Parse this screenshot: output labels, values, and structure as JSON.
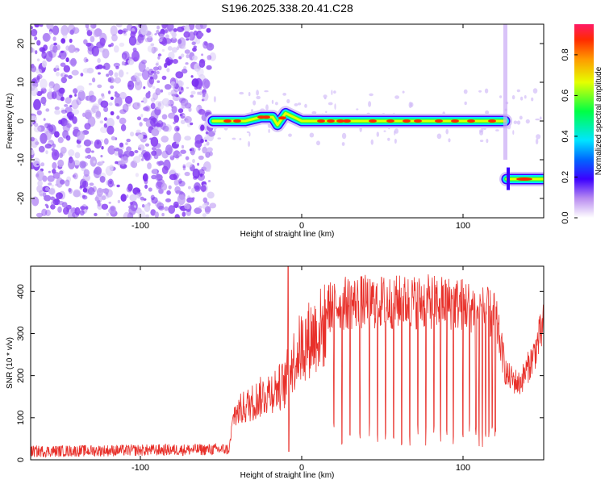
{
  "title": "S196.2025.338.20.41.C28",
  "colors": {
    "snr_line": "#e8302a",
    "dot": "#7a2ef0",
    "background": "#ffffff"
  },
  "chart_data": [
    {
      "type": "heatmap",
      "xlabel": "Height of straight line (km)",
      "ylabel": "Frequency (Hz)",
      "xlim": [
        -168,
        150
      ],
      "ylim": [
        -25,
        25
      ],
      "x_ticks": [
        -100,
        0,
        100
      ],
      "x_tick_labels": [
        "-100",
        "0",
        "100"
      ],
      "y_ticks": [
        -20,
        -10,
        0,
        10,
        20
      ],
      "y_tick_labels": [
        "-20",
        "-10",
        "0",
        "10",
        "20"
      ],
      "colorbar": {
        "label": "Normalized spectral amplitude",
        "range": [
          0,
          0.95
        ],
        "ticks": [
          0,
          0.2,
          0.4,
          0.6,
          0.8
        ],
        "tick_labels": [
          "0.0",
          "0.2",
          "0.4",
          "0.6",
          "0.8"
        ]
      },
      "noise_region_x": [
        -168,
        -55
      ],
      "signal_ridge": {
        "x": [
          -55,
          -45,
          -35,
          -25,
          -18,
          -15,
          -10,
          -5,
          0,
          10,
          20,
          30,
          40,
          50,
          60,
          70,
          80,
          90,
          100,
          110,
          120,
          126
        ],
        "y": [
          0,
          0,
          0,
          1,
          1,
          -1,
          2,
          1,
          0,
          0,
          0,
          0,
          0,
          0,
          0,
          0,
          0,
          0,
          0,
          0,
          0,
          0
        ]
      },
      "secondary_ridge": {
        "x": [
          127,
          150
        ],
        "y": [
          -15,
          -15
        ]
      }
    },
    {
      "type": "line",
      "xlabel": "Height of straight line (km)",
      "ylabel": "SNR (10 * v/v)",
      "xlim": [
        -168,
        150
      ],
      "ylim": [
        0,
        460
      ],
      "x_ticks": [
        -100,
        0,
        100
      ],
      "x_tick_labels": [
        "-100",
        "0",
        "100"
      ],
      "y_ticks": [
        0,
        100,
        200,
        300,
        400
      ],
      "y_tick_labels": [
        "0",
        "100",
        "200",
        "300",
        "400"
      ],
      "envelope": {
        "x": [
          -168,
          -45,
          -42,
          -35,
          -20,
          -10,
          -8,
          0,
          10,
          20,
          40,
          60,
          80,
          100,
          110,
          120,
          127,
          135,
          143,
          150
        ],
        "y": [
          20,
          25,
          120,
          140,
          180,
          200,
          240,
          300,
          340,
          370,
          375,
          375,
          375,
          370,
          360,
          340,
          200,
          180,
          240,
          320
        ]
      },
      "spike": {
        "x": -8.5,
        "y": 460
      },
      "dropouts_x": [
        20,
        25,
        30,
        36,
        42,
        47,
        52,
        57,
        62,
        67,
        72,
        77,
        82,
        86,
        90,
        94,
        100,
        104,
        108,
        110,
        112,
        114,
        116,
        118,
        120
      ]
    }
  ]
}
